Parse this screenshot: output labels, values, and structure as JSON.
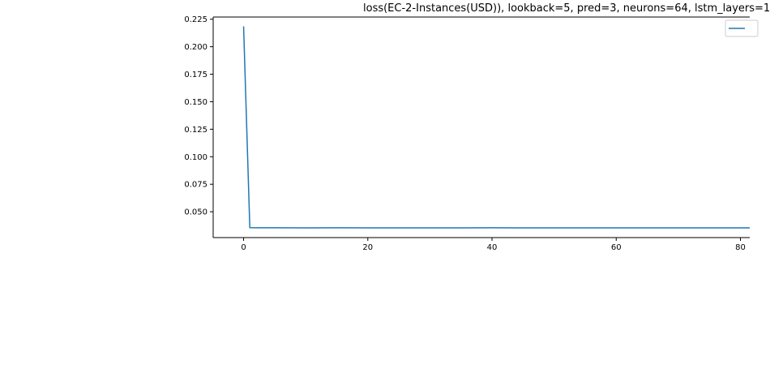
{
  "chart_data": {
    "type": "line",
    "title": "loss(EC-2-Instances(USD)), lookback=5, pred=3, neurons=64, lstm_layers=1",
    "xlabel": "",
    "ylabel": "",
    "xlim": [
      -4.9,
      81.5
    ],
    "ylim": [
      0.0265,
      0.227
    ],
    "x_ticks": [
      0,
      20,
      40,
      60,
      80
    ],
    "x_tick_labels": [
      "0",
      "20",
      "40",
      "60",
      "80"
    ],
    "y_ticks": [
      0.05,
      0.075,
      0.1,
      0.125,
      0.15,
      0.175,
      0.2,
      0.225
    ],
    "y_tick_labels": [
      "0.050",
      "0.075",
      "0.100",
      "0.125",
      "0.150",
      "0.175",
      "0.200",
      "0.225"
    ],
    "grid": false,
    "legend": {
      "placement": "top-right",
      "entries": [
        ""
      ]
    },
    "series": [
      {
        "color": "#1f77b4",
        "x": [
          0,
          1,
          2,
          5,
          10,
          15,
          20,
          25,
          30,
          35,
          40,
          45,
          50,
          55,
          60,
          65,
          70,
          75,
          80,
          82
        ],
        "y": [
          0.2185,
          0.0355,
          0.0354,
          0.0354,
          0.0353,
          0.0354,
          0.0353,
          0.0353,
          0.0353,
          0.0353,
          0.0354,
          0.0353,
          0.0353,
          0.0353,
          0.0353,
          0.0353,
          0.0353,
          0.0353,
          0.0353,
          0.0353
        ]
      }
    ]
  }
}
